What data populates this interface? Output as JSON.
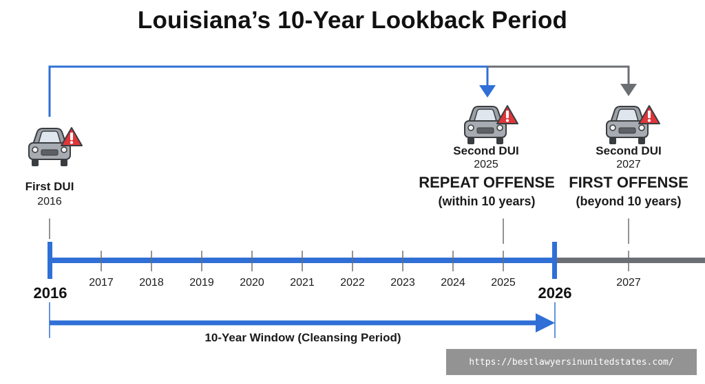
{
  "title": "Louisiana’s 10-Year Lookback Period",
  "events": {
    "first": {
      "name": "First DUI",
      "year": "2016"
    },
    "second_a": {
      "name": "Second DUI",
      "year": "2025",
      "verdict": "REPEAT OFFENSE",
      "verdict_detail": "(within 10 years)"
    },
    "second_b": {
      "name": "Second DUI",
      "year": "2027",
      "verdict": "FIRST OFFENSE",
      "verdict_detail": "(beyond 10 years)"
    }
  },
  "timeline": {
    "start_year": "2016",
    "end_year": "2026",
    "tick_years": [
      "2017",
      "2018",
      "2019",
      "2020",
      "2021",
      "2022",
      "2023",
      "2024",
      "2025"
    ],
    "after_year": "2027"
  },
  "window_label": "10-Year Window (Cleansing Period)",
  "watermark": "https://bestlawyersinunitedstates.com/",
  "colors": {
    "blue": "#2f6fd6",
    "gray": "#6b6f73",
    "warning": "#e0353a"
  },
  "icons": [
    "car-icon",
    "warning-icon",
    "arrow-down-icon",
    "arrow-right-icon"
  ]
}
